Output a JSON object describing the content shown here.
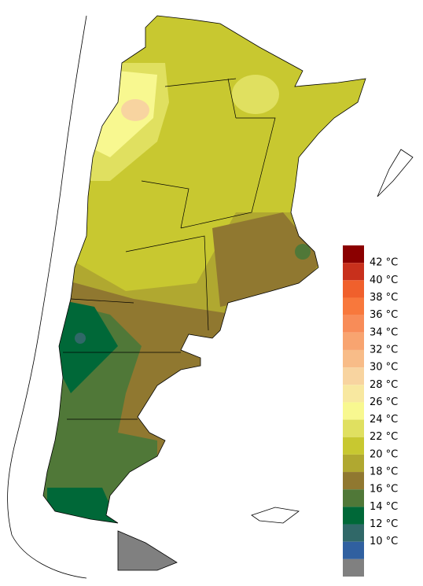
{
  "legend": {
    "colors": [
      "#8b0000",
      "#c8301c",
      "#f0602c",
      "#f8783c",
      "#f88c58",
      "#f8a470",
      "#f8bc88",
      "#f8d4a0",
      "#f8e8a0",
      "#f8f890",
      "#e0e060",
      "#c8c830",
      "#b0a830",
      "#907830",
      "#507838",
      "#006838",
      "#306868",
      "#3060a0",
      "#808080"
    ],
    "labels": [
      "42 °C",
      "40 °C",
      "38 °C",
      "36 °C",
      "34 °C",
      "32 °C",
      "30 °C",
      "28 °C",
      "26 °C",
      "24 °C",
      "22 °C",
      "20 °C",
      "18 °C",
      "16 °C",
      "14 °C",
      "12 °C",
      "10 °C"
    ]
  }
}
